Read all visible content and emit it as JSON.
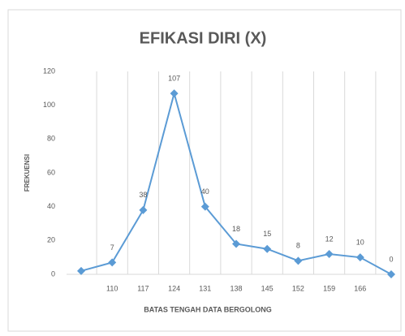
{
  "chart_data": {
    "type": "line",
    "title": "EFIKASI DIRI (X)",
    "x_label": "BATAS TENGAH DATA BERGOLONG",
    "y_label": "FREKUENSI",
    "categories": [
      null,
      "110",
      "117",
      "124",
      "131",
      "138",
      "145",
      "152",
      "159",
      "166",
      null
    ],
    "series": [
      {
        "name": "FREKUENSI",
        "color": "#5b9bd5",
        "values": [
          2,
          7,
          38,
          107,
          40,
          18,
          15,
          8,
          12,
          10,
          0
        ],
        "value_labels": [
          null,
          "7",
          "38",
          "107",
          "40",
          "18",
          "15",
          "8",
          "12",
          "10",
          "0"
        ]
      }
    ],
    "ylim": [
      0,
      120
    ],
    "yticks": [
      0,
      20,
      40,
      60,
      80,
      100,
      120
    ],
    "grid": "x"
  }
}
